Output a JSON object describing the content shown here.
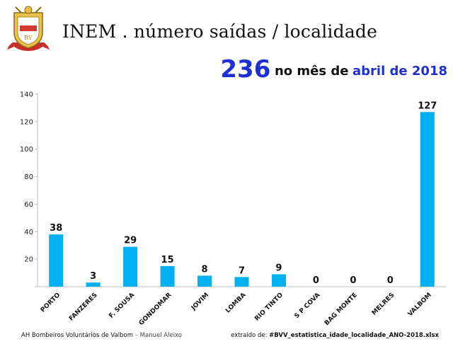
{
  "header": {
    "title": "INEM . número saídas / localidade",
    "total": "236",
    "subtitle_mid": "no mês de",
    "period": "abril de 2018"
  },
  "footer": {
    "org": "AH Bombeiros Voluntários de Valbom",
    "separator": " – ",
    "author": "Manuel Aleixo",
    "source_prefix": "extraído de: ",
    "source_file": "#BVV_estatistica_idade_localidade_ANO-2018.xlsx"
  },
  "colors": {
    "bar": "#00b0f0",
    "accent": "#1f2fd6"
  },
  "chart_data": {
    "type": "bar",
    "title": "INEM . número saídas / localidade",
    "categories": [
      "PORTO",
      "FANZERES",
      "F. SOUSA",
      "GONDOMAR",
      "JOVIM",
      "LOMBA",
      "RIO TINTO",
      "S P COVA",
      "BAG MONTE",
      "MELRES",
      "VALBOM"
    ],
    "values": [
      38,
      3,
      29,
      15,
      8,
      7,
      9,
      0,
      0,
      0,
      127
    ],
    "ylim": [
      0,
      140
    ],
    "yticks": [
      0,
      20,
      40,
      60,
      80,
      100,
      120,
      140
    ],
    "ytick_labels": [
      "",
      "20",
      "40",
      "60",
      "80",
      "100",
      "120",
      "140"
    ],
    "xlabel": "",
    "ylabel": "",
    "grid": false
  }
}
